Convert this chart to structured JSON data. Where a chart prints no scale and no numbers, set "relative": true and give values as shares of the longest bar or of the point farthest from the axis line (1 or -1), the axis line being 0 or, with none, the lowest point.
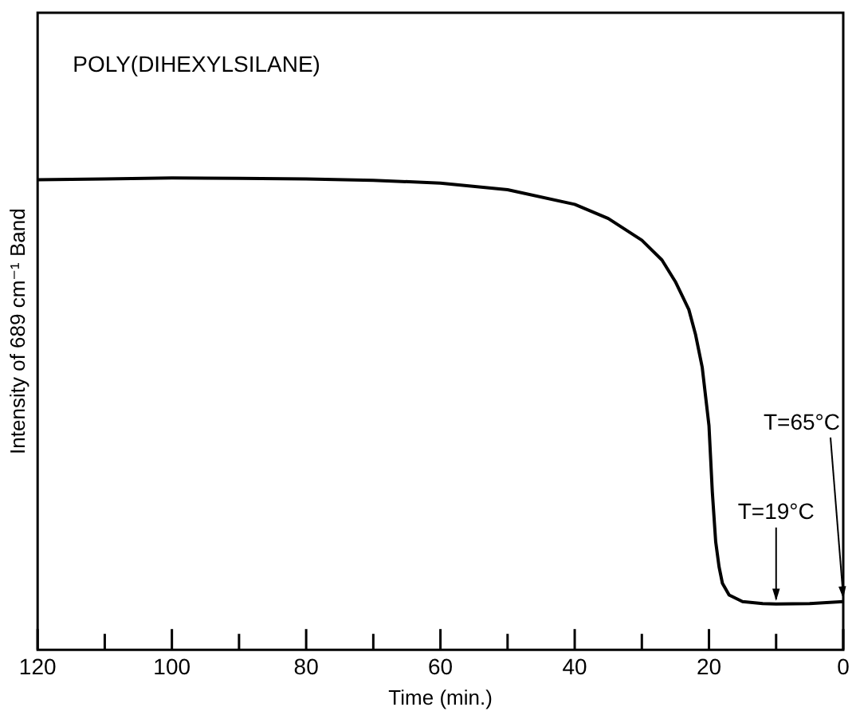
{
  "chart_data": {
    "type": "line",
    "relative": true,
    "xlabel": "Time (min.)",
    "ylabel": "Intensity of 689 cm⁻¹ Band",
    "xlim": [
      120,
      0
    ],
    "xticks": [
      120,
      {
        "value": 110,
        "label": null
      },
      100,
      {
        "value": 90,
        "label": null
      },
      80,
      {
        "value": 70,
        "label": null
      },
      60,
      {
        "value": 50,
        "label": null
      },
      40,
      {
        "value": 30,
        "label": null
      },
      20,
      {
        "value": 10,
        "label": null
      },
      0
    ],
    "series": [
      {
        "color": "#000000",
        "x": [
          120,
          110,
          100,
          90,
          80,
          70,
          60,
          50,
          40,
          35,
          30,
          27,
          25,
          23,
          22,
          21,
          20,
          19.5,
          19,
          18.5,
          18,
          17,
          15,
          12,
          10,
          5,
          0
        ],
        "values": [
          0.996,
          0.998,
          1,
          0.999,
          0.998,
          0.995,
          0.989,
          0.975,
          0.944,
          0.914,
          0.868,
          0.826,
          0.78,
          0.721,
          0.668,
          0.598,
          0.475,
          0.334,
          0.229,
          0.176,
          0.141,
          0.116,
          0.102,
          0.098,
          0.097,
          0.098,
          0.102
        ]
      }
    ],
    "marker": "none",
    "line_style": "solid",
    "grid": false,
    "legend": false,
    "annotations": [
      "POLY(DIHEXYLSILANE)",
      {
        "text": "T=19°C",
        "x": 10,
        "y": 0.097
      },
      {
        "text": "T=65°C",
        "x": 0,
        "y": 0.102
      }
    ]
  }
}
